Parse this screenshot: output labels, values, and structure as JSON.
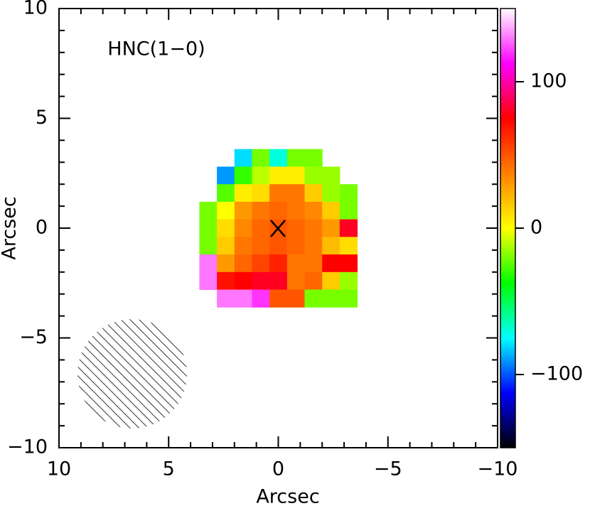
{
  "chart_data": {
    "type": "heatmap",
    "annotation": "HNC(1−0)",
    "xlabel": "Arcsec",
    "ylabel": "Arcsec",
    "xlim": [
      10,
      -10
    ],
    "ylim": [
      -10,
      10
    ],
    "xticks": [
      10,
      5,
      0,
      {
        "value": -5,
        "label": "−5"
      },
      {
        "value": -10,
        "label": "−10"
      }
    ],
    "yticks": [
      {
        "value": -10,
        "label": "−10"
      },
      {
        "value": -5,
        "label": "−5"
      },
      0,
      5,
      10
    ],
    "xminorticks": [
      9,
      8,
      7,
      6,
      4,
      3,
      2,
      1,
      -1,
      -2,
      -3,
      -4,
      -6,
      -7,
      -8,
      -9
    ],
    "yminorticks": [
      -9,
      -8,
      -7,
      -6,
      -4,
      -3,
      -2,
      -1,
      1,
      2,
      3,
      4,
      6,
      7,
      8,
      9
    ],
    "x": [
      3.2,
      2.4,
      1.6,
      0.8,
      0,
      -0.8,
      -1.6,
      -2.4,
      -3.2
    ],
    "y": [
      3.2,
      2.4,
      1.6,
      0.8,
      0,
      -0.8,
      -1.6,
      -2.4,
      -3.2
    ],
    "values": [
      [
        null,
        null,
        -80,
        -20,
        -70,
        -20,
        -20,
        null,
        null
      ],
      [
        null,
        -90,
        -30,
        -10,
        5,
        5,
        -15,
        -15,
        null
      ],
      [
        null,
        -25,
        5,
        10,
        40,
        40,
        15,
        -15,
        -20
      ],
      [
        -20,
        0,
        30,
        40,
        45,
        40,
        35,
        15,
        -20
      ],
      [
        -20,
        10,
        35,
        45,
        50,
        45,
        40,
        30,
        80
      ],
      [
        -20,
        15,
        40,
        45,
        50,
        45,
        40,
        20,
        10
      ],
      [
        130,
        30,
        45,
        55,
        65,
        40,
        40,
        75,
        75
      ],
      [
        130,
        70,
        75,
        80,
        80,
        40,
        45,
        15,
        -15
      ],
      [
        null,
        130,
        130,
        120,
        50,
        50,
        -20,
        -20,
        -20
      ]
    ],
    "colorscale": [
      "#000000",
      "#0000ff",
      "#00ffff",
      "#00ff00",
      "#ffff00",
      "#ff8000",
      "#ff0000",
      "#ff00ff",
      "#ffffff"
    ],
    "clim": [
      -150,
      150
    ],
    "cticks": [
      {
        "value": -100,
        "label": "−100"
      },
      0,
      100
    ]
  }
}
